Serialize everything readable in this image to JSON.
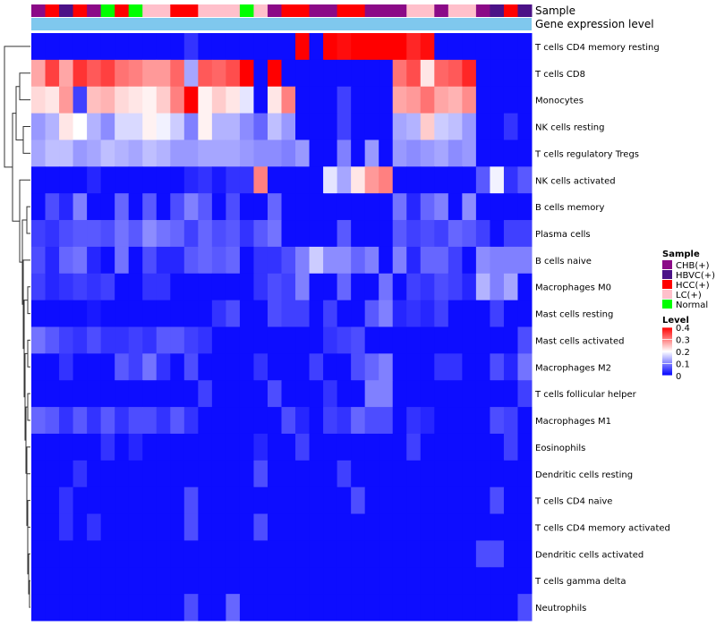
{
  "chart_data": {
    "type": "heatmap",
    "annotation_titles": {
      "sample": "Sample",
      "expression": "Gene expression level"
    },
    "sample_groups": [
      "CHB(+)",
      "HBVC(+)",
      "HCC(+)",
      "LC(+)",
      "Normal"
    ],
    "group_colors": {
      "CHB(+)": "#8B0A87",
      "HBVC(+)": "#4B1287",
      "HCC(+)": "#FF0000",
      "LC(+)": "#FFC0CB",
      "Normal": "#00FF00"
    },
    "column_samples": [
      "CHB(+)",
      "HCC(+)",
      "HBVC(+)",
      "HCC(+)",
      "CHB(+)",
      "Normal",
      "HCC(+)",
      "Normal",
      "LC(+)",
      "LC(+)",
      "HCC(+)",
      "HCC(+)",
      "LC(+)",
      "LC(+)",
      "LC(+)",
      "Normal",
      "LC(+)",
      "CHB(+)",
      "HCC(+)",
      "HCC(+)",
      "CHB(+)",
      "CHB(+)",
      "HCC(+)",
      "HCC(+)",
      "CHB(+)",
      "CHB(+)",
      "CHB(+)",
      "LC(+)",
      "LC(+)",
      "CHB(+)",
      "LC(+)",
      "LC(+)",
      "CHB(+)",
      "HBVC(+)",
      "HCC(+)",
      "HBVC(+)"
    ],
    "expression_bar_color": "#7FC8EE",
    "rows": [
      "T cells CD4 memory resting",
      "T cells CD8",
      "Monocytes",
      "NK cells resting",
      "T cells regulatory  Tregs",
      "NK cells activated",
      "B cells memory",
      "Plasma cells",
      "B cells naive",
      "Macrophages M0",
      "Mast cells resting",
      "Mast cells activated",
      "Macrophages M2",
      "T cells follicular helper",
      "Macrophages M1",
      "Eosinophils",
      "Dendritic cells resting",
      "T cells CD4 naive",
      "T cells CD4 memory activated",
      "Dendritic cells activated",
      "T cells gamma delta",
      "Neutrophils"
    ],
    "values": [
      [
        0.01,
        0.01,
        0.01,
        0.01,
        0.01,
        0.01,
        0.01,
        0.01,
        0.01,
        0.01,
        0.01,
        0.04,
        0.01,
        0.01,
        0.01,
        0.01,
        0.01,
        0.01,
        0.01,
        0.4,
        0.01,
        0.4,
        0.39,
        0.4,
        0.4,
        0.4,
        0.4,
        0.37,
        0.39,
        0.01,
        0.01,
        0.01,
        0.01,
        0.01,
        0.01,
        0.01
      ],
      [
        0.27,
        0.35,
        0.27,
        0.36,
        0.33,
        0.35,
        0.31,
        0.3,
        0.28,
        0.28,
        0.32,
        0.13,
        0.33,
        0.32,
        0.34,
        0.4,
        0.01,
        0.4,
        0.01,
        0.01,
        0.01,
        0.01,
        0.01,
        0.01,
        0.01,
        0.01,
        0.31,
        0.34,
        0.22,
        0.32,
        0.33,
        0.37,
        0.01,
        0.01,
        0.01,
        0.01
      ],
      [
        0.23,
        0.22,
        0.28,
        0.05,
        0.25,
        0.26,
        0.23,
        0.22,
        0.21,
        0.24,
        0.3,
        0.4,
        0.21,
        0.24,
        0.22,
        0.18,
        0.01,
        0.22,
        0.3,
        0.01,
        0.01,
        0.01,
        0.05,
        0.01,
        0.01,
        0.01,
        0.27,
        0.28,
        0.31,
        0.27,
        0.26,
        0.29,
        0.01,
        0.01,
        0.01,
        0.01
      ],
      [
        0.12,
        0.14,
        0.22,
        0.2,
        0.14,
        0.11,
        0.17,
        0.17,
        0.21,
        0.19,
        0.16,
        0.1,
        0.21,
        0.14,
        0.14,
        0.11,
        0.08,
        0.15,
        0.12,
        0.01,
        0.01,
        0.01,
        0.05,
        0.01,
        0.01,
        0.01,
        0.13,
        0.14,
        0.24,
        0.16,
        0.15,
        0.12,
        0.01,
        0.01,
        0.04,
        0.01
      ],
      [
        0.13,
        0.15,
        0.15,
        0.12,
        0.13,
        0.15,
        0.14,
        0.13,
        0.15,
        0.14,
        0.12,
        0.12,
        0.13,
        0.13,
        0.13,
        0.12,
        0.11,
        0.11,
        0.1,
        0.12,
        0.01,
        0.01,
        0.1,
        0.01,
        0.12,
        0.01,
        0.12,
        0.11,
        0.12,
        0.13,
        0.11,
        0.12,
        0.01,
        0.01,
        0.01,
        0.01
      ],
      [
        0.01,
        0.01,
        0.01,
        0.01,
        0.03,
        0.01,
        0.01,
        0.01,
        0.01,
        0.01,
        0.01,
        0.03,
        0.04,
        0.02,
        0.04,
        0.04,
        0.3,
        0.01,
        0.01,
        0.01,
        0.01,
        0.18,
        0.13,
        0.22,
        0.28,
        0.3,
        0.01,
        0.01,
        0.01,
        0.01,
        0.01,
        0.01,
        0.07,
        0.19,
        0.04,
        0.07
      ],
      [
        0.01,
        0.06,
        0.03,
        0.1,
        0.01,
        0.01,
        0.08,
        0.01,
        0.07,
        0.01,
        0.06,
        0.1,
        0.07,
        0.01,
        0.06,
        0.01,
        0.01,
        0.08,
        0.01,
        0.01,
        0.01,
        0.01,
        0.01,
        0.01,
        0.01,
        0.01,
        0.09,
        0.03,
        0.08,
        0.1,
        0.01,
        0.11,
        0.01,
        0.01,
        0.01,
        0.01
      ],
      [
        0.05,
        0.04,
        0.06,
        0.07,
        0.07,
        0.06,
        0.09,
        0.07,
        0.11,
        0.09,
        0.08,
        0.05,
        0.08,
        0.06,
        0.07,
        0.04,
        0.07,
        0.09,
        0.01,
        0.01,
        0.01,
        0.01,
        0.07,
        0.01,
        0.01,
        0.01,
        0.07,
        0.05,
        0.06,
        0.05,
        0.08,
        0.07,
        0.05,
        0.01,
        0.05,
        0.05
      ],
      [
        0.06,
        0.03,
        0.08,
        0.09,
        0.03,
        0.01,
        0.09,
        0.01,
        0.06,
        0.03,
        0.03,
        0.07,
        0.08,
        0.07,
        0.08,
        0.01,
        0.04,
        0.04,
        0.06,
        0.1,
        0.16,
        0.11,
        0.11,
        0.08,
        0.1,
        0.01,
        0.1,
        0.03,
        0.08,
        0.08,
        0.05,
        0.01,
        0.11,
        0.1,
        0.1,
        0.1
      ],
      [
        0.05,
        0.03,
        0.04,
        0.05,
        0.04,
        0.05,
        0.01,
        0.01,
        0.04,
        0.04,
        0.01,
        0.01,
        0.01,
        0.01,
        0.01,
        0.01,
        0.04,
        0.06,
        0.05,
        0.1,
        0.01,
        0.01,
        0.08,
        0.01,
        0.01,
        0.09,
        0.01,
        0.05,
        0.04,
        0.06,
        0.05,
        0.03,
        0.14,
        0.1,
        0.13,
        0.01
      ],
      [
        0.01,
        0.01,
        0.01,
        0.01,
        0.02,
        0.01,
        0.01,
        0.01,
        0.01,
        0.01,
        0.01,
        0.01,
        0.01,
        0.04,
        0.06,
        0.01,
        0.01,
        0.06,
        0.05,
        0.05,
        0.01,
        0.05,
        0.01,
        0.01,
        0.07,
        0.1,
        0.03,
        0.04,
        0.03,
        0.05,
        0.01,
        0.01,
        0.01,
        0.05,
        0.01,
        0.01
      ],
      [
        0.09,
        0.07,
        0.05,
        0.04,
        0.06,
        0.04,
        0.04,
        0.05,
        0.04,
        0.07,
        0.07,
        0.05,
        0.04,
        0.01,
        0.01,
        0.01,
        0.01,
        0.01,
        0.01,
        0.01,
        0.01,
        0.04,
        0.05,
        0.06,
        0.01,
        0.01,
        0.01,
        0.01,
        0.01,
        0.01,
        0.01,
        0.01,
        0.01,
        0.01,
        0.01,
        0.06
      ],
      [
        0.01,
        0.01,
        0.04,
        0.01,
        0.01,
        0.01,
        0.07,
        0.05,
        0.09,
        0.04,
        0.01,
        0.06,
        0.01,
        0.01,
        0.01,
        0.01,
        0.04,
        0.01,
        0.01,
        0.01,
        0.05,
        0.01,
        0.01,
        0.06,
        0.08,
        0.1,
        0.01,
        0.01,
        0.01,
        0.04,
        0.04,
        0.01,
        0.01,
        0.06,
        0.03,
        0.09
      ],
      [
        0.01,
        0.01,
        0.01,
        0.01,
        0.01,
        0.01,
        0.01,
        0.01,
        0.01,
        0.01,
        0.01,
        0.01,
        0.05,
        0.01,
        0.01,
        0.01,
        0.01,
        0.06,
        0.01,
        0.01,
        0.01,
        0.04,
        0.01,
        0.01,
        0.1,
        0.1,
        0.01,
        0.01,
        0.01,
        0.01,
        0.01,
        0.01,
        0.01,
        0.01,
        0.01,
        0.05
      ],
      [
        0.08,
        0.07,
        0.04,
        0.07,
        0.04,
        0.07,
        0.04,
        0.06,
        0.06,
        0.04,
        0.07,
        0.04,
        0.01,
        0.01,
        0.01,
        0.01,
        0.01,
        0.01,
        0.06,
        0.03,
        0.01,
        0.05,
        0.04,
        0.08,
        0.06,
        0.06,
        0.01,
        0.04,
        0.03,
        0.01,
        0.01,
        0.01,
        0.01,
        0.06,
        0.05,
        0.01
      ],
      [
        0.01,
        0.01,
        0.01,
        0.01,
        0.01,
        0.04,
        0.01,
        0.03,
        0.01,
        0.01,
        0.01,
        0.01,
        0.01,
        0.01,
        0.01,
        0.01,
        0.03,
        0.01,
        0.01,
        0.05,
        0.01,
        0.01,
        0.01,
        0.01,
        0.01,
        0.01,
        0.01,
        0.05,
        0.01,
        0.01,
        0.01,
        0.01,
        0.01,
        0.01,
        0.05,
        0.01
      ],
      [
        0.01,
        0.01,
        0.01,
        0.04,
        0.01,
        0.01,
        0.01,
        0.01,
        0.01,
        0.01,
        0.01,
        0.01,
        0.01,
        0.01,
        0.01,
        0.01,
        0.06,
        0.01,
        0.01,
        0.01,
        0.01,
        0.01,
        0.05,
        0.01,
        0.01,
        0.01,
        0.01,
        0.01,
        0.01,
        0.01,
        0.01,
        0.01,
        0.01,
        0.01,
        0.01,
        0.01
      ],
      [
        0.01,
        0.01,
        0.04,
        0.01,
        0.01,
        0.01,
        0.01,
        0.01,
        0.01,
        0.01,
        0.01,
        0.06,
        0.01,
        0.01,
        0.01,
        0.01,
        0.01,
        0.01,
        0.01,
        0.01,
        0.01,
        0.01,
        0.01,
        0.06,
        0.01,
        0.01,
        0.01,
        0.01,
        0.01,
        0.01,
        0.01,
        0.01,
        0.01,
        0.06,
        0.01,
        0.01
      ],
      [
        0.01,
        0.01,
        0.04,
        0.01,
        0.04,
        0.01,
        0.01,
        0.01,
        0.01,
        0.01,
        0.01,
        0.06,
        0.01,
        0.01,
        0.01,
        0.01,
        0.06,
        0.01,
        0.01,
        0.01,
        0.01,
        0.01,
        0.01,
        0.01,
        0.01,
        0.01,
        0.01,
        0.01,
        0.01,
        0.01,
        0.01,
        0.01,
        0.01,
        0.01,
        0.01,
        0.01
      ],
      [
        0.01,
        0.01,
        0.01,
        0.01,
        0.01,
        0.01,
        0.01,
        0.01,
        0.01,
        0.01,
        0.01,
        0.01,
        0.01,
        0.01,
        0.01,
        0.01,
        0.01,
        0.01,
        0.01,
        0.01,
        0.01,
        0.01,
        0.01,
        0.01,
        0.01,
        0.01,
        0.01,
        0.01,
        0.01,
        0.01,
        0.01,
        0.01,
        0.06,
        0.06,
        0.01,
        0.01
      ],
      [
        0.01,
        0.01,
        0.01,
        0.01,
        0.01,
        0.01,
        0.01,
        0.01,
        0.01,
        0.01,
        0.01,
        0.01,
        0.01,
        0.01,
        0.01,
        0.01,
        0.01,
        0.01,
        0.01,
        0.01,
        0.01,
        0.01,
        0.01,
        0.01,
        0.01,
        0.01,
        0.01,
        0.01,
        0.01,
        0.01,
        0.01,
        0.01,
        0.01,
        0.01,
        0.01,
        0.01
      ],
      [
        0.01,
        0.01,
        0.01,
        0.01,
        0.01,
        0.01,
        0.01,
        0.01,
        0.01,
        0.01,
        0.01,
        0.06,
        0.01,
        0.01,
        0.08,
        0.01,
        0.01,
        0.01,
        0.01,
        0.01,
        0.01,
        0.01,
        0.01,
        0.01,
        0.01,
        0.01,
        0.01,
        0.01,
        0.01,
        0.01,
        0.01,
        0.01,
        0.01,
        0.01,
        0.01,
        0.06
      ]
    ],
    "color_scale": {
      "title": "Level",
      "min": 0,
      "max": 0.4,
      "ticks": [
        "0.4",
        "0.3",
        "0.2",
        "0.1",
        "0"
      ],
      "low_color": "#0000FF",
      "mid_color": "#FFFFFF",
      "high_color": "#FF0000"
    },
    "legend_placement": "right-middle"
  }
}
